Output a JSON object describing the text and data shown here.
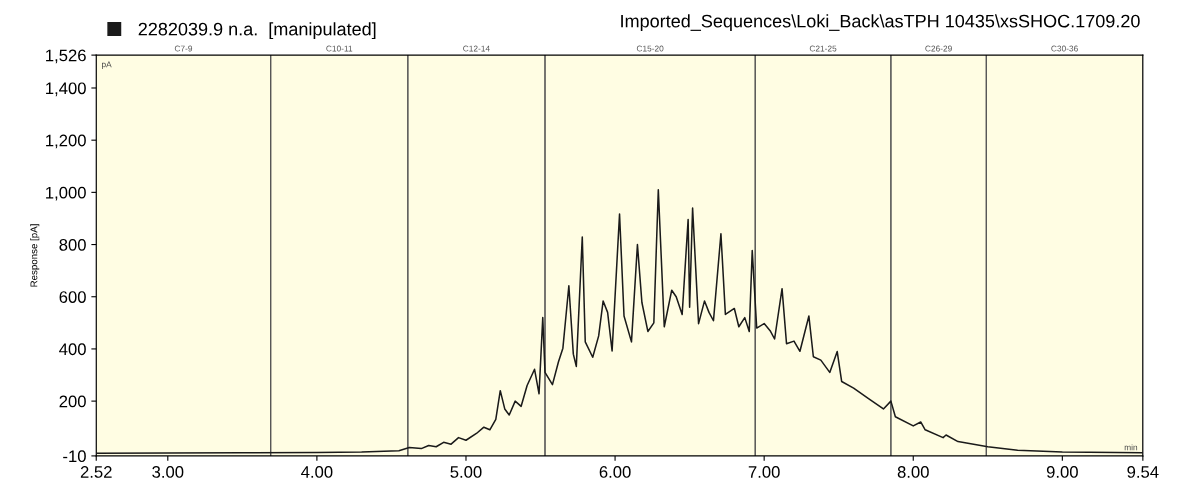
{
  "chart_data": {
    "type": "line",
    "title": "Imported_Sequences\\Loki_Back\\asTPH 10435\\xsSHOC.1709.20",
    "ylabel": "Response [pA]",
    "annotations": [
      "pA",
      "min"
    ],
    "legend": "top left",
    "series": [
      {
        "name": "2282039.9 n.a.  [manipulated]",
        "color": "#1a1a1a",
        "x": [
          2.52,
          3.0,
          3.5,
          4.0,
          4.3,
          4.55,
          4.62,
          4.7,
          4.75,
          4.8,
          4.85,
          4.9,
          4.95,
          5.0,
          5.07,
          5.12,
          5.16,
          5.2,
          5.23,
          5.26,
          5.29,
          5.33,
          5.37,
          5.41,
          5.46,
          5.49,
          5.515,
          5.53,
          5.58,
          5.62,
          5.65,
          5.69,
          5.72,
          5.74,
          5.78,
          5.8,
          5.85,
          5.89,
          5.92,
          5.95,
          5.98,
          6.03,
          6.06,
          6.11,
          6.15,
          6.18,
          6.22,
          6.26,
          6.29,
          6.33,
          6.38,
          6.41,
          6.45,
          6.49,
          6.5,
          6.52,
          6.56,
          6.6,
          6.63,
          6.66,
          6.71,
          6.74,
          6.8,
          6.83,
          6.87,
          6.9,
          6.92,
          6.95,
          7.0,
          7.04,
          7.07,
          7.12,
          7.15,
          7.2,
          7.24,
          7.3,
          7.33,
          7.38,
          7.44,
          7.49,
          7.52,
          7.6,
          7.7,
          7.8,
          7.85,
          7.88,
          8.0,
          8.05,
          8.08,
          8.2,
          8.22,
          8.3,
          8.5,
          8.7,
          9.0,
          9.54
        ],
        "values": [
          0,
          1,
          2,
          3,
          5,
          10,
          22,
          18,
          30,
          25,
          42,
          35,
          60,
          50,
          76,
          100,
          90,
          130,
          240,
          170,
          147,
          200,
          180,
          260,
          322,
          228,
          520,
          310,
          263,
          350,
          403,
          642,
          380,
          333,
          829,
          427,
          368,
          450,
          584,
          540,
          392,
          917,
          526,
          427,
          800,
          578,
          467,
          500,
          1010,
          485,
          625,
          600,
          532,
          896,
          560,
          940,
          497,
          584,
          540,
          508,
          841,
          532,
          555,
          485,
          520,
          467,
          777,
          480,
          497,
          470,
          438,
          631,
          420,
          430,
          391,
          526,
          370,
          357,
          310,
          390,
          275,
          250,
          210,
          170,
          200,
          140,
          105,
          120,
          90,
          60,
          70,
          45,
          25,
          12,
          5,
          2
        ]
      }
    ],
    "bands": [
      {
        "axis": "x",
        "from": 2.52,
        "to": 3.69,
        "label": "C7-9",
        "color": "#fffde3"
      },
      {
        "axis": "x",
        "from": 3.69,
        "to": 4.61,
        "label": "C10-11",
        "color": "#fffde3"
      },
      {
        "axis": "x",
        "from": 4.61,
        "to": 5.53,
        "label": "C12-14",
        "color": "#fffde3"
      },
      {
        "axis": "x",
        "from": 5.53,
        "to": 6.94,
        "label": "C15-20",
        "color": "#fffde3"
      },
      {
        "axis": "x",
        "from": 6.94,
        "to": 7.85,
        "label": "C21-25",
        "color": "#fffde3"
      },
      {
        "axis": "x",
        "from": 7.85,
        "to": 8.49,
        "label": "C26-29",
        "color": "#fffde3"
      },
      {
        "axis": "x",
        "from": 8.49,
        "to": 9.54,
        "label": "C30-36",
        "color": "#fffde3"
      }
    ],
    "xlim": [
      2.52,
      9.54
    ],
    "xticks": [
      2.52,
      {
        "value": 3,
        "label": "3.00"
      },
      {
        "value": 4,
        "label": "4.00"
      },
      {
        "value": 5,
        "label": "5.00"
      },
      {
        "value": 6,
        "label": "6.00"
      },
      {
        "value": 7,
        "label": "7.00"
      },
      {
        "value": 8,
        "label": "8.00"
      },
      {
        "value": 9,
        "label": "9.00"
      },
      9.54
    ],
    "ylim": [
      -10,
      1526
    ],
    "yticks": [
      -10,
      {
        "value": 200,
        "label": "200"
      },
      {
        "value": 400,
        "label": "400"
      },
      {
        "value": 600,
        "label": "600"
      },
      {
        "value": 800,
        "label": "800"
      },
      {
        "value": 1000,
        "label": "1,000"
      },
      {
        "value": 1200,
        "label": "1,200"
      },
      {
        "value": 1400,
        "label": "1,400"
      },
      {
        "value": 1526,
        "label": "1,526"
      }
    ],
    "grid": false,
    "marker": "none",
    "line_style": "solid"
  }
}
